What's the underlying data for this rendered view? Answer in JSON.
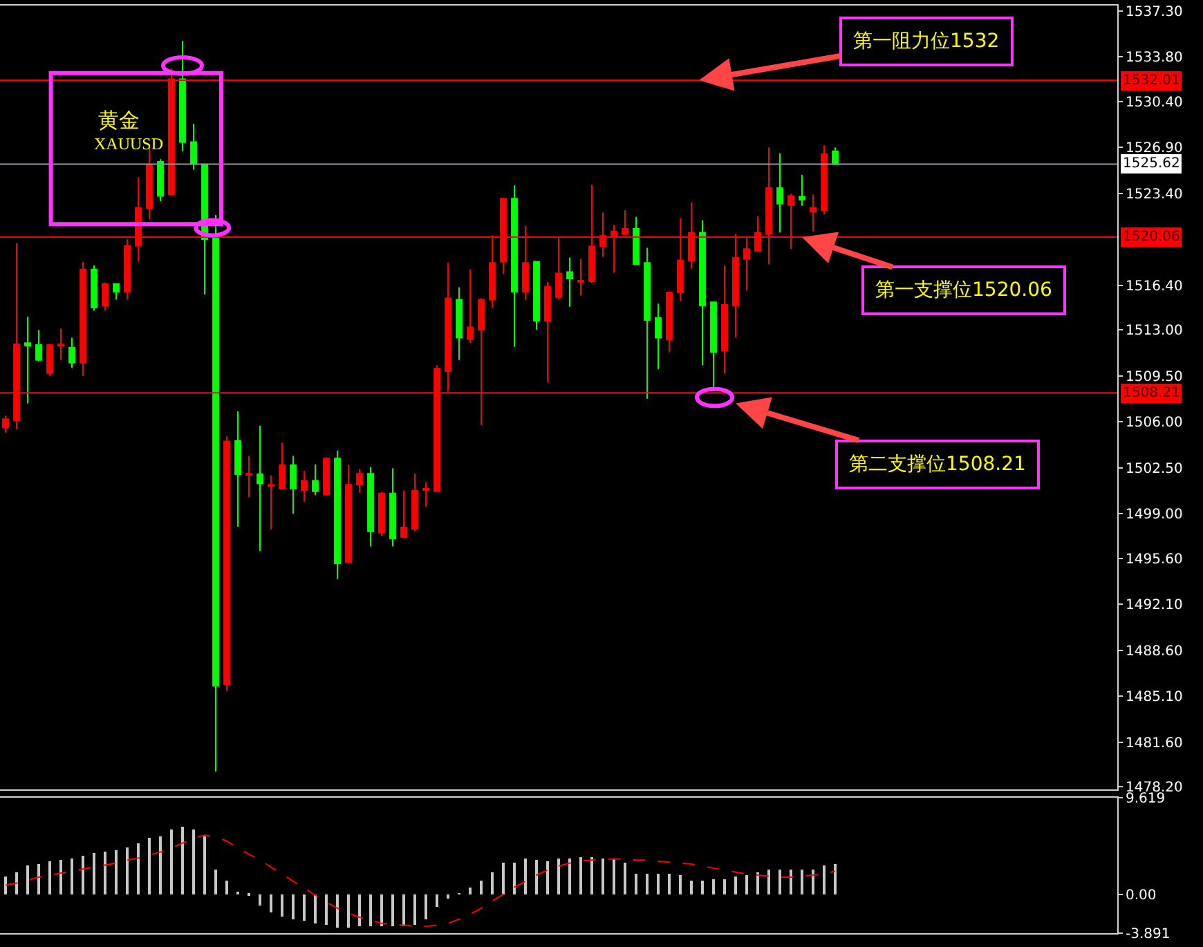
{
  "chart_data": [
    {
      "type": "candlestick",
      "categories": [
        null,
        null,
        null,
        null,
        null,
        null,
        null,
        null,
        null,
        null,
        null,
        null,
        null,
        null,
        null,
        null,
        null,
        null,
        null,
        null,
        null,
        null,
        null,
        null,
        null,
        null,
        null,
        null,
        null,
        null,
        null,
        null,
        null,
        null,
        null,
        null,
        null,
        null,
        null,
        null,
        null,
        null,
        null,
        null,
        null,
        null,
        null,
        null,
        null,
        null,
        null,
        null,
        null,
        null,
        null,
        null,
        null,
        null,
        null,
        null,
        null,
        null,
        null,
        null,
        null,
        null,
        null,
        null,
        null,
        null,
        null,
        null,
        null,
        null,
        null,
        null,
        null,
        null,
        null,
        null,
        null,
        null,
        null,
        null,
        null,
        null,
        null,
        null,
        null,
        null,
        null,
        null,
        null,
        null,
        null,
        null,
        null,
        null,
        null,
        null,
        null
      ],
      "ohlc": [
        [
          1505.55,
          1506.47,
          1505.17,
          1506.2
        ],
        [
          1506.1,
          1519.6,
          1505.4,
          1511.9
        ],
        [
          1512.0,
          1514.0,
          1507.4,
          1511.8
        ],
        [
          1511.85,
          1513.0,
          1510.6,
          1510.7
        ],
        [
          1509.7,
          1511.85,
          1509.5,
          1511.85
        ],
        [
          1511.8,
          1513.1,
          1510.7,
          1511.9
        ],
        [
          1511.65,
          1512.4,
          1510.1,
          1510.5
        ],
        [
          1510.5,
          1518.2,
          1509.5,
          1517.6
        ],
        [
          1517.6,
          1517.9,
          1514.45,
          1514.7
        ],
        [
          1514.85,
          1516.6,
          1514.45,
          1516.5
        ],
        [
          1516.5,
          1516.5,
          1515.3,
          1515.9
        ],
        [
          1515.9,
          1519.9,
          1515.3,
          1519.4
        ],
        [
          1519.4,
          1524.6,
          1518.2,
          1522.3
        ],
        [
          1522.25,
          1526.8,
          1521.4,
          1525.6
        ],
        [
          1525.8,
          1526.0,
          1522.8,
          1523.2
        ],
        [
          1523.3,
          1532.9,
          1523.3,
          1532.1
        ],
        [
          1532.1,
          1535.0,
          1526.6,
          1527.3
        ],
        [
          1527.3,
          1528.7,
          1525.2,
          1525.7
        ],
        [
          1525.6,
          1525.6,
          1515.7,
          1519.9
        ],
        [
          1520.2,
          1521.75,
          1479.35,
          1485.9
        ],
        [
          1486.0,
          1504.9,
          1485.5,
          1504.5
        ],
        [
          1504.55,
          1506.8,
          1498.0,
          1502.0
        ],
        [
          1501.95,
          1503.4,
          1500.25,
          1502.05
        ],
        [
          1502.0,
          1505.7,
          1496.15,
          1501.3
        ],
        [
          1501.1,
          1501.9,
          1497.8,
          1501.2
        ],
        [
          1500.9,
          1504.4,
          1500.85,
          1502.7
        ],
        [
          1502.7,
          1503.4,
          1499.0,
          1500.9
        ],
        [
          1500.8,
          1502.25,
          1499.9,
          1501.5
        ],
        [
          1501.5,
          1502.75,
          1500.4,
          1500.7
        ],
        [
          1500.45,
          1503.3,
          1500.4,
          1503.2
        ],
        [
          1503.2,
          1503.8,
          1494.0,
          1495.2
        ],
        [
          1495.3,
          1502.7,
          1495.3,
          1501.2
        ],
        [
          1501.2,
          1502.4,
          1500.6,
          1502.05
        ],
        [
          1502.05,
          1502.55,
          1496.5,
          1497.65
        ],
        [
          1497.55,
          1500.65,
          1497.3,
          1500.55
        ],
        [
          1500.55,
          1502.45,
          1496.5,
          1497.1
        ],
        [
          1497.2,
          1500.75,
          1497.2,
          1497.95
        ],
        [
          1497.85,
          1502.05,
          1497.65,
          1500.75
        ],
        [
          1500.8,
          1501.4,
          1499.5,
          1500.9
        ],
        [
          1500.7,
          1510.3,
          1500.7,
          1510.05
        ],
        [
          1509.85,
          1518.1,
          1508.3,
          1515.4
        ],
        [
          1515.3,
          1516.25,
          1510.7,
          1512.4
        ],
        [
          1512.3,
          1517.6,
          1512.0,
          1513.2
        ],
        [
          1513.0,
          1515.4,
          1505.75,
          1515.3
        ],
        [
          1515.3,
          1520.2,
          1514.7,
          1518.1
        ],
        [
          1518.2,
          1523.0,
          1517.25,
          1523.0
        ],
        [
          1523.0,
          1524.0,
          1511.7,
          1515.9
        ],
        [
          1515.9,
          1520.9,
          1515.3,
          1518.1
        ],
        [
          1518.2,
          1518.2,
          1513.0,
          1513.7
        ],
        [
          1513.7,
          1516.65,
          1509.0,
          1516.3
        ],
        [
          1515.5,
          1520.0,
          1515.3,
          1517.3
        ],
        [
          1517.4,
          1518.5,
          1514.75,
          1516.9
        ],
        [
          1516.65,
          1518.4,
          1515.6,
          1516.75
        ],
        [
          1516.7,
          1524.05,
          1516.55,
          1519.35
        ],
        [
          1519.35,
          1521.95,
          1518.55,
          1520.15
        ],
        [
          1520.15,
          1521.0,
          1517.35,
          1520.5
        ],
        [
          1520.3,
          1522.1,
          1520.2,
          1520.7
        ],
        [
          1520.7,
          1521.6,
          1518.0,
          1518.0
        ],
        [
          1518.1,
          1519.25,
          1507.75,
          1513.75
        ],
        [
          1513.9,
          1515.0,
          1510.0,
          1512.4
        ],
        [
          1512.25,
          1515.9,
          1511.3,
          1515.85
        ],
        [
          1515.85,
          1521.5,
          1515.2,
          1518.3
        ],
        [
          1518.25,
          1522.7,
          1517.65,
          1520.4
        ],
        [
          1520.4,
          1521.35,
          1510.3,
          1514.85
        ],
        [
          1515.1,
          1515.1,
          1508.5,
          1511.3
        ],
        [
          1511.4,
          1517.9,
          1509.65,
          1514.9
        ],
        [
          1514.85,
          1520.3,
          1512.4,
          1518.5
        ],
        [
          1518.4,
          1520.0,
          1516.0,
          1519.15
        ],
        [
          1519.0,
          1521.65,
          1519.0,
          1520.4
        ],
        [
          1520.3,
          1526.9,
          1518.0,
          1523.8
        ],
        [
          1523.8,
          1526.45,
          1520.4,
          1522.6
        ],
        [
          1522.5,
          1523.35,
          1519.15,
          1523.2
        ],
        [
          1523.15,
          1524.8,
          1522.45,
          1522.9
        ],
        [
          1522.0,
          1523.3,
          1520.5,
          1522.3
        ],
        [
          1522.1,
          1527.05,
          1521.8,
          1526.4
        ],
        [
          1526.6,
          1526.9,
          1525.6,
          1525.62
        ],
        null,
        null,
        null,
        null,
        null,
        null,
        null,
        null,
        null,
        null,
        null,
        null,
        null,
        null,
        null,
        null,
        null,
        null,
        null,
        null,
        null,
        null,
        null,
        null,
        null
      ],
      "colors": [
        "#ff0000",
        "#ff0000",
        "#00ff00",
        "#00ff00",
        "#ff0000",
        "#ff0000",
        "#00ff00",
        "#ff0000",
        "#00ff00",
        "#ff0000",
        "#00ff00",
        "#ff0000",
        "#ff0000",
        "#ff0000",
        "#00ff00",
        "#ff0000",
        "#00ff00",
        "#00ff00",
        "#00ff00",
        "#00ff00",
        "#ff0000",
        "#00ff00",
        "#ff0000",
        "#00ff00",
        "#ff0000",
        "#ff0000",
        "#00ff00",
        "#ff0000",
        "#00ff00",
        "#ff0000",
        "#00ff00",
        "#ff0000",
        "#ff0000",
        "#00ff00",
        "#ff0000",
        "#00ff00",
        "#ff0000",
        "#ff0000",
        "#ff0000",
        "#ff0000",
        "#ff0000",
        "#00ff00",
        "#ff0000",
        "#ff0000",
        "#ff0000",
        "#ff0000",
        "#00ff00",
        "#ff0000",
        "#00ff00",
        "#ff0000",
        "#ff0000",
        "#00ff00",
        "#ff0000",
        "#ff0000",
        "#ff0000",
        "#ff0000",
        "#ff0000",
        "#00ff00",
        "#00ff00",
        "#00ff00",
        "#ff0000",
        "#ff0000",
        "#ff0000",
        "#00ff00",
        "#00ff00",
        "#ff0000",
        "#ff0000",
        "#ff0000",
        "#ff0000",
        "#ff0000",
        "#00ff00",
        "#ff0000",
        "#00ff00",
        "#ff0000",
        "#ff0000",
        "#00ff00",
        null,
        null,
        null,
        null,
        null,
        null,
        null,
        null,
        null,
        null,
        null,
        null,
        null,
        null,
        null,
        null,
        null,
        null,
        null,
        null,
        null,
        null,
        null,
        null,
        null
      ],
      "ylim": [
        1478.0,
        1537.7
      ],
      "yticks": [
        {
          "value": 1537.3,
          "label": "1537.30"
        },
        {
          "value": 1533.8,
          "label": "1533.80"
        },
        {
          "value": 1530.4,
          "label": "1530.40"
        },
        {
          "value": 1526.9,
          "label": "1526.90"
        },
        {
          "value": 1523.4,
          "label": "1523.40"
        },
        {
          "value": 1516.4,
          "label": "1516.40"
        },
        {
          "value": 1513.0,
          "label": "1513.00"
        },
        {
          "value": 1509.5,
          "label": "1509.50"
        },
        {
          "value": 1506.0,
          "label": "1506.00"
        },
        {
          "value": 1502.5,
          "label": "1502.50"
        },
        {
          "value": 1499.0,
          "label": "1499.00"
        },
        {
          "value": 1495.6,
          "label": "1495.60"
        },
        {
          "value": 1492.1,
          "label": "1492.10"
        },
        {
          "value": 1488.6,
          "label": "1488.60"
        },
        {
          "value": 1485.1,
          "label": "1485.10"
        },
        {
          "value": 1481.6,
          "label": "1481.60"
        },
        {
          "value": 1478.2,
          "label": "1478.20"
        }
      ],
      "tick_labels": "y",
      "ref_lines": [
        {
          "axis": "y",
          "value": 1532.01,
          "label": "1532.01",
          "color": "#ff0000"
        },
        {
          "axis": "y",
          "value": 1525.62,
          "label": "1525.62",
          "color": "#8c96a5"
        },
        {
          "axis": "y",
          "value": 1520.06,
          "label": "1520.06",
          "color": "#ff0000"
        },
        {
          "axis": "y",
          "value": 1508.21,
          "label": "1508.21",
          "color": "#ff0000"
        }
      ],
      "annotations": [
        "黄金",
        "XAUUSD",
        {
          "text": "第一阻力位1532",
          "y": 1532.01
        },
        {
          "text": "第一支撑位1520.06",
          "y": 1520.06
        },
        "第二支撑位1508.21"
      ]
    },
    {
      "type": "bar",
      "categories": [
        null,
        null,
        null,
        null,
        null,
        null,
        null,
        null,
        null,
        null,
        null,
        null,
        null,
        null,
        null,
        null,
        null,
        null,
        null,
        null,
        null,
        null,
        null,
        null,
        null,
        null,
        null,
        null,
        null,
        null,
        null,
        null,
        null,
        null,
        null,
        null,
        null,
        null,
        null,
        null,
        null,
        null,
        null,
        null,
        null,
        null,
        null,
        null,
        null,
        null,
        null,
        null,
        null,
        null,
        null,
        null,
        null,
        null,
        null,
        null,
        null,
        null,
        null,
        null,
        null,
        null,
        null,
        null,
        null,
        null,
        null,
        null,
        null,
        null,
        null,
        null,
        null,
        null,
        null,
        null,
        null,
        null,
        null,
        null,
        null,
        null,
        null,
        null,
        null,
        null,
        null,
        null,
        null,
        null,
        null,
        null,
        null,
        null,
        null,
        null,
        null
      ],
      "series": [
        {
          "type": "bar",
          "color": "#c8c8c8",
          "values": [
            1.8,
            2.2,
            2.8,
            3.0,
            3.3,
            3.4,
            3.5,
            3.8,
            4.1,
            4.2,
            4.4,
            4.7,
            5.1,
            5.6,
            5.8,
            6.5,
            6.7,
            6.5,
            5.8,
            2.5,
            1.4,
            0.2,
            -0.2,
            -1.2,
            -1.8,
            -2.2,
            -2.5,
            -2.7,
            -2.9,
            -3.0,
            -3.4,
            -3.3,
            -3.2,
            -3.2,
            -3.2,
            -3.2,
            -3.2,
            -3.0,
            -2.5,
            -1.3,
            -0.4,
            0.1,
            0.7,
            1.4,
            2.2,
            3.2,
            3.2,
            3.5,
            3.4,
            3.3,
            3.5,
            3.6,
            3.7,
            3.7,
            3.6,
            3.6,
            3.2,
            2.1,
            2.1,
            2.1,
            2.1,
            1.9,
            1.3,
            1.3,
            1.5,
            1.5,
            1.8,
            1.9,
            2.2,
            2.4,
            2.5,
            2.4,
            2.5,
            2.5,
            2.9,
            3.0,
            null,
            null,
            null,
            null,
            null,
            null,
            null,
            null,
            null,
            null,
            null,
            null,
            null,
            null,
            null,
            null,
            null,
            null,
            null,
            null,
            null,
            null,
            null,
            null,
            null
          ]
        },
        {
          "type": "line",
          "color": "#ff0000",
          "line_style": "dashed",
          "values": [
            0.9,
            1.1,
            1.4,
            1.7,
            1.9,
            2.1,
            2.3,
            2.5,
            2.7,
            2.9,
            3.1,
            3.4,
            3.6,
            3.9,
            4.2,
            4.6,
            5.1,
            5.6,
            5.9,
            5.7,
            5.3,
            4.6,
            4.0,
            3.4,
            2.7,
            2.0,
            1.3,
            0.6,
            -0.1,
            -0.8,
            -1.4,
            -1.9,
            -2.3,
            -2.6,
            -2.9,
            -3.0,
            -3.1,
            -3.2,
            -3.2,
            -3.1,
            -2.9,
            -2.5,
            -2.0,
            -1.4,
            -0.7,
            0.0,
            0.7,
            1.3,
            1.9,
            2.4,
            2.8,
            3.1,
            3.3,
            3.4,
            3.5,
            3.5,
            3.5,
            3.4,
            3.4,
            3.3,
            3.2,
            3.1,
            3.0,
            2.8,
            2.6,
            2.4,
            2.2,
            2.0,
            1.9,
            1.8,
            1.7,
            1.7,
            1.8,
            1.9,
            2.0,
            2.3,
            null,
            null,
            null,
            null,
            null,
            null,
            null,
            null,
            null,
            null,
            null,
            null,
            null,
            null,
            null,
            null,
            null,
            null,
            null,
            null,
            null,
            null,
            null,
            null,
            null
          ]
        }
      ],
      "ylim": [
        -3.891,
        9.619
      ],
      "yticks": [
        {
          "value": 9.619,
          "label": "9.619"
        },
        {
          "value": 0,
          "label": "0.00"
        },
        {
          "value": -3.891,
          "label": "-3.891"
        }
      ],
      "tick_labels": "y"
    }
  ]
}
